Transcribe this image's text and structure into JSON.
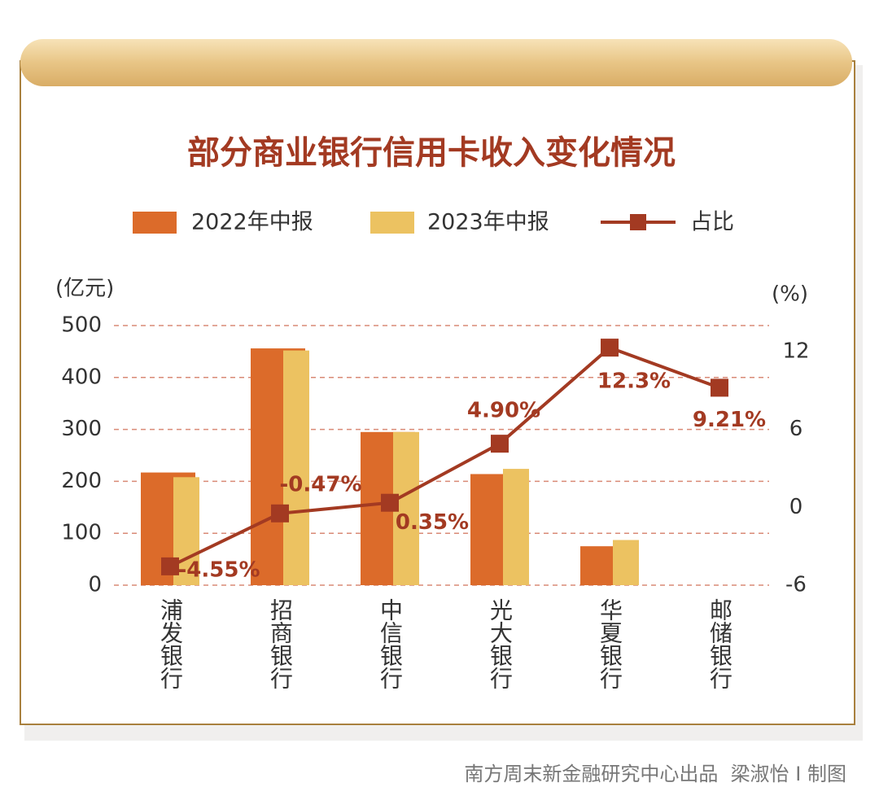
{
  "chart_data": {
    "type": "bar-line",
    "title": "部分商业银行信用卡收入变化情况",
    "y_label": "(亿元)",
    "y2_label": "(%)",
    "categories": [
      "浦发银行",
      "招商银行",
      "中信银行",
      "光大银行",
      "华夏银行",
      "邮储银行"
    ],
    "series": [
      {
        "name": "2022年中报",
        "type": "bar",
        "color": "#dc6b2a",
        "values": [
          217,
          456,
          295,
          214,
          75,
          null
        ]
      },
      {
        "name": "2023年中报",
        "type": "bar",
        "color": "#ecc261",
        "values": [
          208,
          452,
          295,
          224,
          87,
          null
        ]
      },
      {
        "name": "占比",
        "type": "line",
        "axis": "y2",
        "color": "#a33a22",
        "values": [
          -4.55,
          -0.47,
          0.35,
          4.9,
          12.3,
          9.21
        ],
        "value_labels": [
          "-4.55%",
          "-0.47%",
          "0.35%",
          "4.90%",
          "12.3%",
          "9.21%"
        ]
      }
    ],
    "ylim": [
      0,
      500
    ],
    "yticks": [
      0,
      100,
      200,
      300,
      400,
      500
    ],
    "y2lim": [
      -6,
      14
    ],
    "y2ticks": [
      -6,
      0,
      6,
      12
    ],
    "grid": true,
    "source": "南方周末新金融研究中心出品  梁淑怡 I 制图"
  }
}
